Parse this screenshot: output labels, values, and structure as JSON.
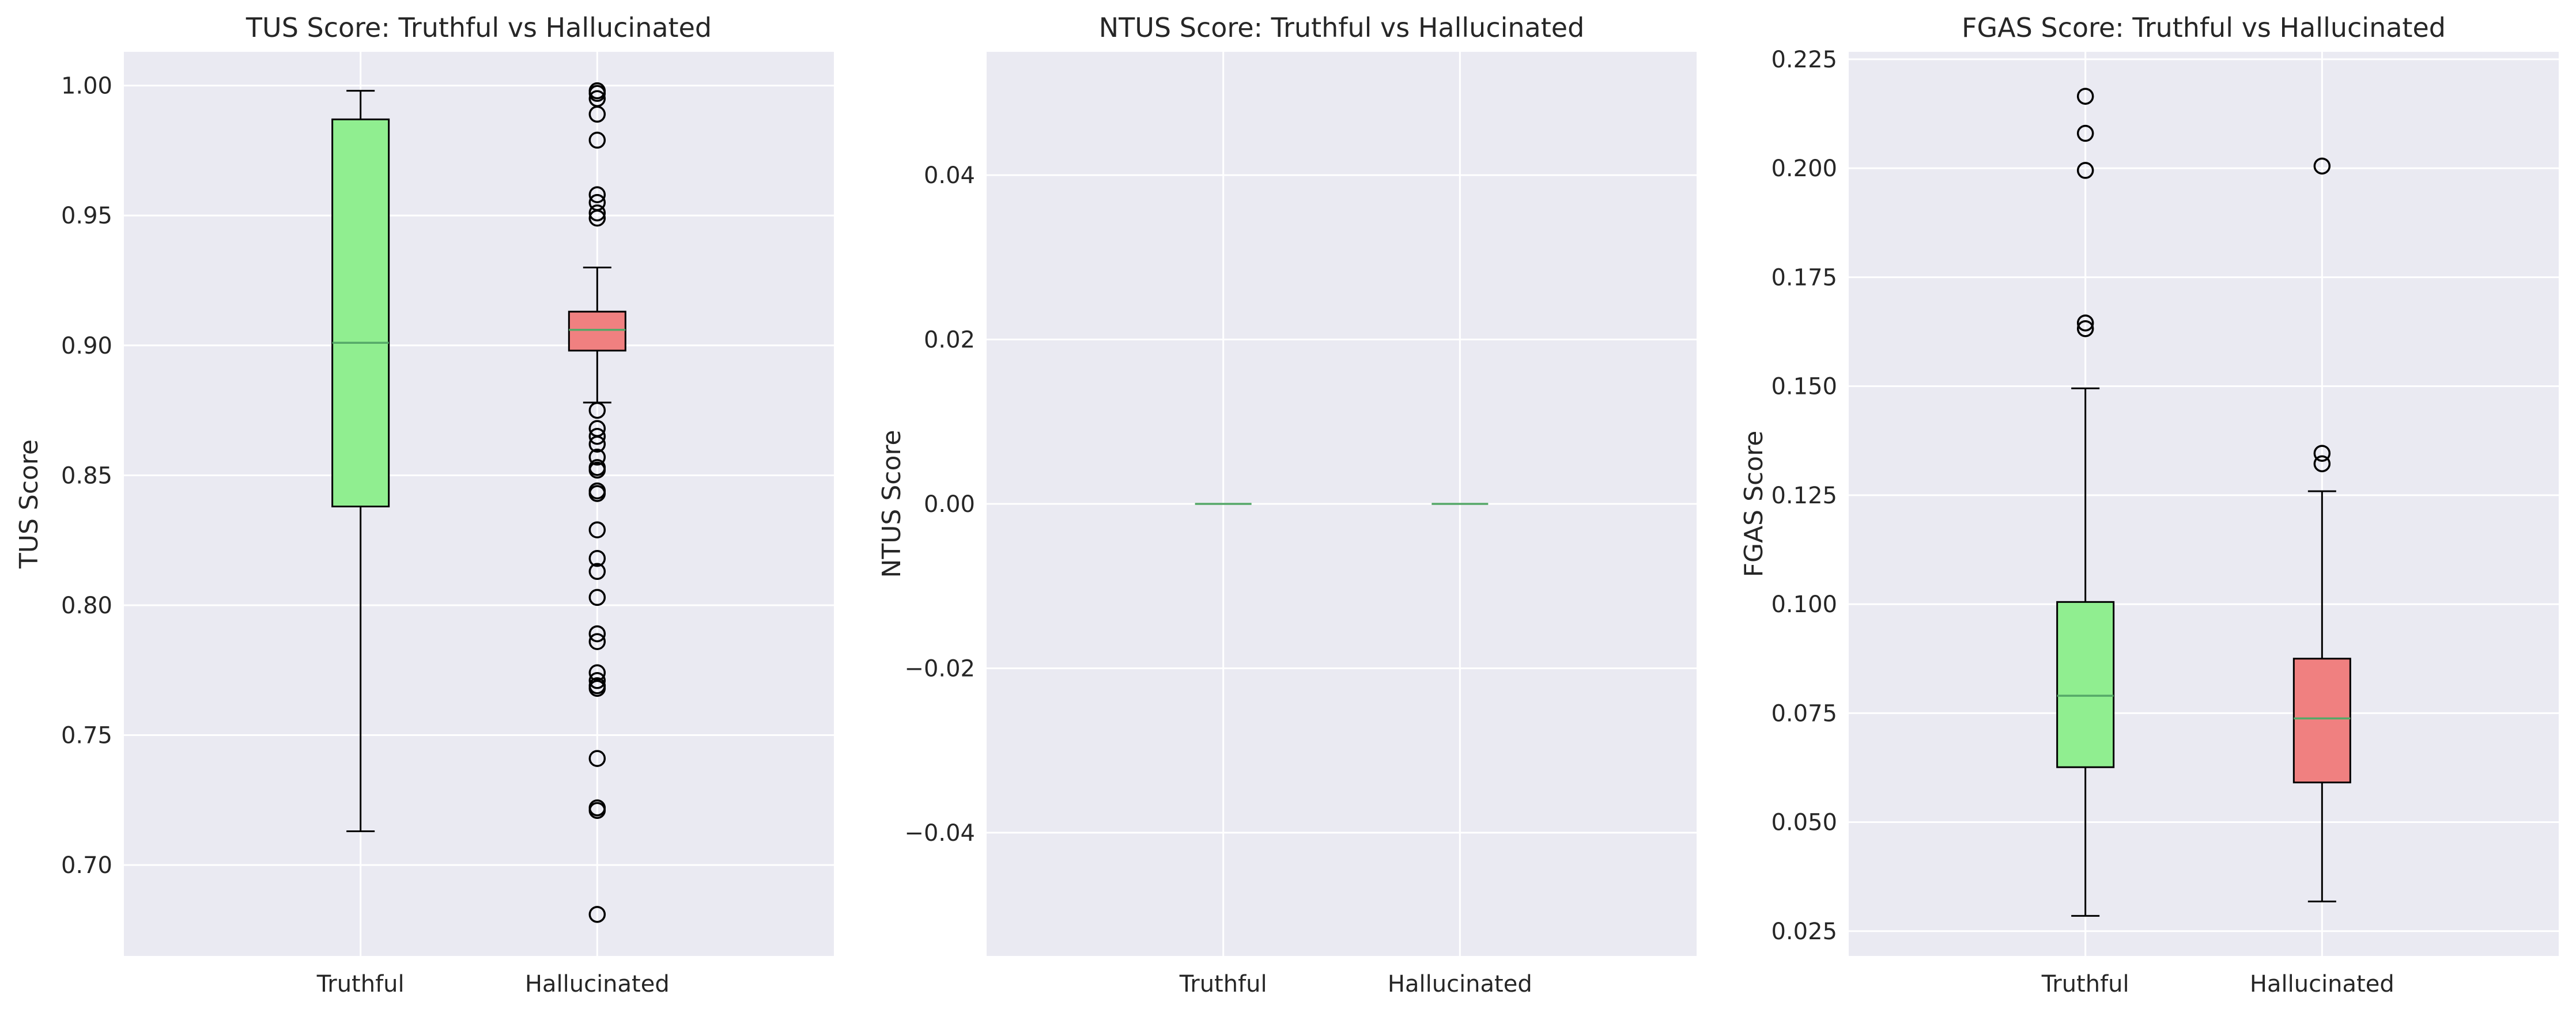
{
  "chart_data": [
    {
      "type": "box",
      "title": "TUS Score: Truthful vs Hallucinated",
      "xlabel": "",
      "ylabel": "TUS Score",
      "categories": [
        "Truthful",
        "Hallucinated"
      ],
      "ylim": [
        0.665,
        1.013
      ],
      "yticks": [
        0.7,
        0.75,
        0.8,
        0.85,
        0.9,
        0.95,
        1.0
      ],
      "ytick_labels": [
        "0.70",
        "0.75",
        "0.80",
        "0.85",
        "0.90",
        "0.95",
        "1.00"
      ],
      "grid": true,
      "boxes": [
        {
          "category": "Truthful",
          "color": "#90ee90",
          "whisker_low": 0.713,
          "q1": 0.838,
          "median": 0.901,
          "q3": 0.987,
          "whisker_high": 0.998,
          "outliers": []
        },
        {
          "category": "Hallucinated",
          "color": "#f08080",
          "whisker_low": 0.878,
          "q1": 0.898,
          "median": 0.906,
          "q3": 0.913,
          "whisker_high": 0.93,
          "outliers": [
            0.998,
            0.997,
            0.995,
            0.989,
            0.979,
            0.958,
            0.955,
            0.951,
            0.949,
            0.875,
            0.868,
            0.865,
            0.862,
            0.857,
            0.853,
            0.852,
            0.844,
            0.843,
            0.829,
            0.818,
            0.813,
            0.803,
            0.789,
            0.786,
            0.774,
            0.771,
            0.769,
            0.768,
            0.741,
            0.722,
            0.721,
            0.681
          ]
        }
      ]
    },
    {
      "type": "box",
      "title": "NTUS Score: Truthful vs Hallucinated",
      "xlabel": "",
      "ylabel": "NTUS Score",
      "categories": [
        "Truthful",
        "Hallucinated"
      ],
      "ylim": [
        -0.055,
        0.055
      ],
      "yticks": [
        -0.04,
        -0.02,
        0.0,
        0.02,
        0.04
      ],
      "ytick_labels": [
        "−0.04",
        "−0.02",
        "0.00",
        "0.02",
        "0.04"
      ],
      "grid": true,
      "boxes": [
        {
          "category": "Truthful",
          "color": "#90ee90",
          "whisker_low": 0.0,
          "q1": 0.0,
          "median": 0.0,
          "q3": 0.0,
          "whisker_high": 0.0,
          "outliers": []
        },
        {
          "category": "Hallucinated",
          "color": "#f08080",
          "whisker_low": 0.0,
          "q1": 0.0,
          "median": 0.0,
          "q3": 0.0,
          "whisker_high": 0.0,
          "outliers": []
        }
      ]
    },
    {
      "type": "box",
      "title": "FGAS Score: Truthful vs Hallucinated",
      "xlabel": "",
      "ylabel": "FGAS Score",
      "categories": [
        "Truthful",
        "Hallucinated"
      ],
      "ylim": [
        0.0193,
        0.2267
      ],
      "yticks": [
        0.025,
        0.05,
        0.075,
        0.1,
        0.125,
        0.15,
        0.175,
        0.2,
        0.225
      ],
      "ytick_labels": [
        "0.025",
        "0.050",
        "0.075",
        "0.100",
        "0.125",
        "0.150",
        "0.175",
        "0.200",
        "0.225"
      ],
      "grid": true,
      "boxes": [
        {
          "category": "Truthful",
          "color": "#90ee90",
          "whisker_low": 0.0285,
          "q1": 0.0626,
          "median": 0.079,
          "q3": 0.1005,
          "whisker_high": 0.1495,
          "outliers": [
            0.2165,
            0.208,
            0.1995,
            0.1645,
            0.1632
          ]
        },
        {
          "category": "Hallucinated",
          "color": "#f08080",
          "whisker_low": 0.0318,
          "q1": 0.0591,
          "median": 0.0738,
          "q3": 0.0875,
          "whisker_high": 0.1259,
          "outliers": [
            0.2005,
            0.1346,
            0.1322
          ]
        }
      ]
    }
  ],
  "style": {
    "plot_background": "#eaeaf2",
    "grid_color": "#ffffff",
    "median_color": "#55a868",
    "edge_color": "#000000",
    "text_color": "#262626"
  }
}
